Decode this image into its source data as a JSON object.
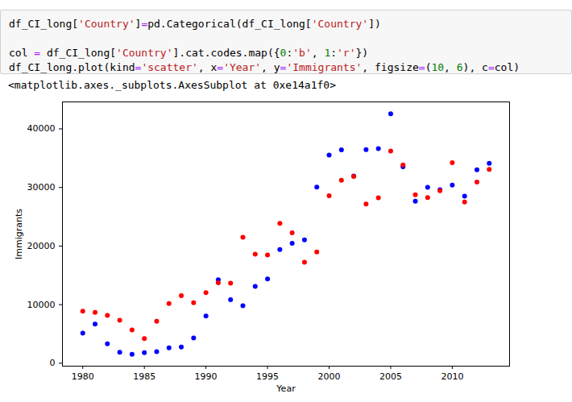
{
  "cell": {
    "code": [
      [
        "df_CI_long['Country']=pd.Categorical(df_CI_long['Country'])"
      ],
      [
        "col = df_CI_long['Country'].cat.codes.map({0:'b', 1:'r'})",
        "df_CI_long.plot(kind='scatter', x='Year', y='Immigrants', figsize=(10, 6), c=col)"
      ]
    ],
    "output": "<matplotlib.axes._subplots.AxesSubplot at 0xe14a1f0>"
  },
  "chart_data": {
    "type": "scatter",
    "x_label": "Year",
    "y_label": "Immigrants",
    "x": [
      1980,
      1981,
      1982,
      1983,
      1984,
      1985,
      1986,
      1987,
      1988,
      1989,
      1990,
      1991,
      1992,
      1993,
      1994,
      1995,
      1996,
      1997,
      1998,
      1999,
      2000,
      2001,
      2002,
      2003,
      2004,
      2005,
      2006,
      2007,
      2008,
      2009,
      2010,
      2011,
      2012,
      2013
    ],
    "series": [
      {
        "color": "#0000ff",
        "marker": "circle",
        "values": [
          5123,
          6682,
          3308,
          1863,
          1527,
          1816,
          1960,
          2643,
          2758,
          4323,
          8076,
          14255,
          10846,
          9817,
          13128,
          14398,
          19415,
          20475,
          21049,
          30069,
          35529,
          36434,
          31961,
          36439,
          36619,
          42584,
          33518,
          27642,
          30037,
          29622,
          30391,
          28502,
          33024,
          34129
        ]
      },
      {
        "color": "#ff0000",
        "marker": "circle",
        "values": [
          8880,
          8670,
          8147,
          7338,
          5704,
          4211,
          7150,
          10189,
          11522,
          10343,
          12041,
          13734,
          13673,
          21496,
          18620,
          18489,
          23859,
          22268,
          17241,
          18974,
          28572,
          31223,
          31889,
          27155,
          28235,
          36210,
          33848,
          28742,
          28261,
          29456,
          34235,
          27509,
          30933,
          33087
        ]
      }
    ],
    "xlim": [
      1978.35,
      2014.65
    ],
    "ylim": [
      -500,
      44600
    ],
    "xticks": [
      1980,
      1985,
      1990,
      1995,
      2000,
      2005,
      2010
    ],
    "yticks": [
      0,
      10000,
      20000,
      30000,
      40000
    ],
    "grid": false
  }
}
